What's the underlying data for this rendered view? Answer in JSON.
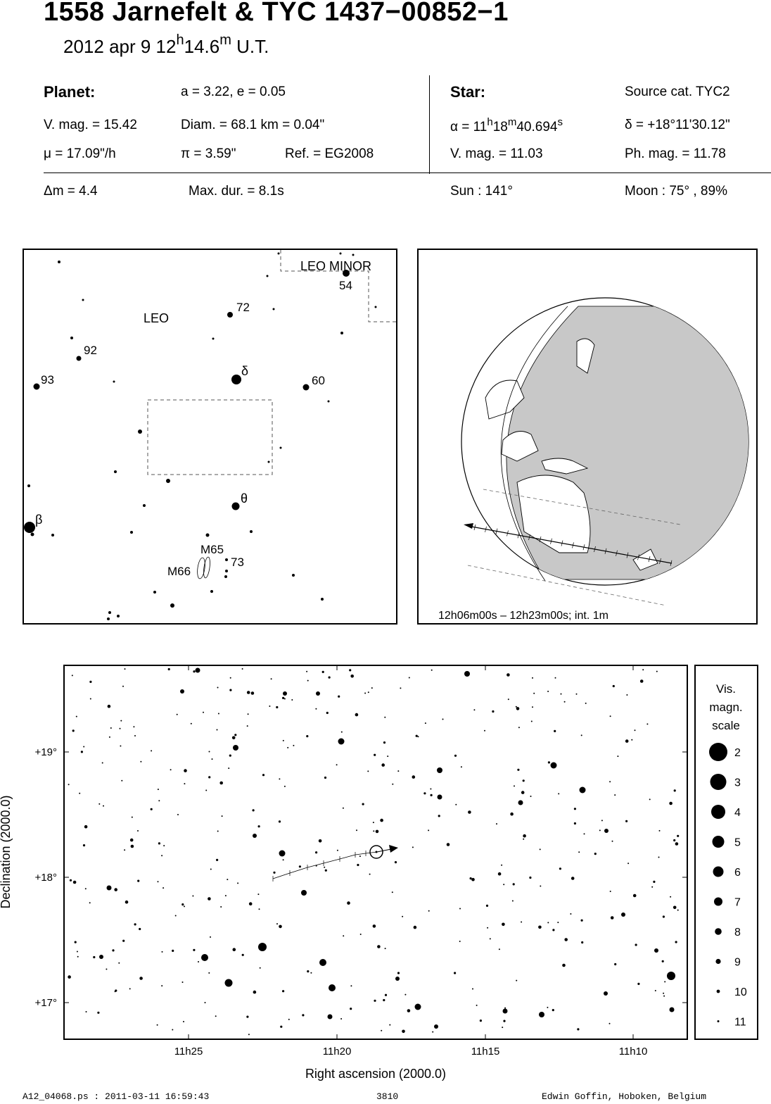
{
  "header": {
    "title": "1558 Jarnefelt  &  TYC 1437−00852−1",
    "date_prefix": "2012 apr  9  12",
    "date_h": "h",
    "date_mid": "14.6",
    "date_m": "m",
    "date_suffix": " U.T."
  },
  "planet": {
    "heading": "Planet:",
    "orbit": "a = 3.22, e = 0.05",
    "vmag": "V. mag. = 15.42",
    "diam": "Diam. = 68.1 km = 0.04\"",
    "mu": "μ =  17.09\"/h",
    "pi": "π =  3.59\"",
    "ref": "Ref. = EG2008"
  },
  "star": {
    "heading": "Star:",
    "source": "Source cat.  TYC2",
    "alpha_prefix": "α = 11",
    "alpha_h": "h",
    "alpha_mid": "18",
    "alpha_m": "m",
    "alpha_sec": "40.694",
    "alpha_s": "s",
    "delta": "δ = +18°11'30.12\"",
    "vmag": "V. mag. = 11.03",
    "phmag": "Ph. mag. = 11.78"
  },
  "summary": {
    "dm": "Δm = 4.4",
    "maxdur": "Max. dur. = 8.1s",
    "sun": "Sun : 141°",
    "moon": "Moon :  75° , 89%"
  },
  "finder": {
    "constellation1": "LEO",
    "constellation2": "LEO MINOR",
    "labels": [
      "54",
      "72",
      "92",
      "93",
      "60",
      "δ",
      "θ",
      "β",
      "M65",
      "M66",
      "73"
    ]
  },
  "globe": {
    "caption": "12h06m00s – 12h23m00s; int.  1m"
  },
  "chart_data": {
    "type": "scatter",
    "xlabel": "Right ascension (2000.0)",
    "ylabel": "Declination (2000.0)",
    "x_ticks": [
      "11h25",
      "11h20",
      "11h15",
      "11h10"
    ],
    "y_ticks": [
      "+19°",
      "+18°",
      "+17°"
    ],
    "x_inverted": true,
    "path_note": "asteroid track ending at target star",
    "legend": {
      "title_lines": [
        "Vis.",
        "magn.",
        "scale"
      ],
      "magnitudes": [
        "2",
        "3",
        "4",
        "5",
        "6",
        "7",
        "8",
        "9",
        "10",
        "11"
      ]
    }
  },
  "footer": {
    "file": "A12_04068.ps : 2011-03-11 16:59:43",
    "number": "3810",
    "author": "Edwin Goffin, Hoboken, Belgium"
  }
}
